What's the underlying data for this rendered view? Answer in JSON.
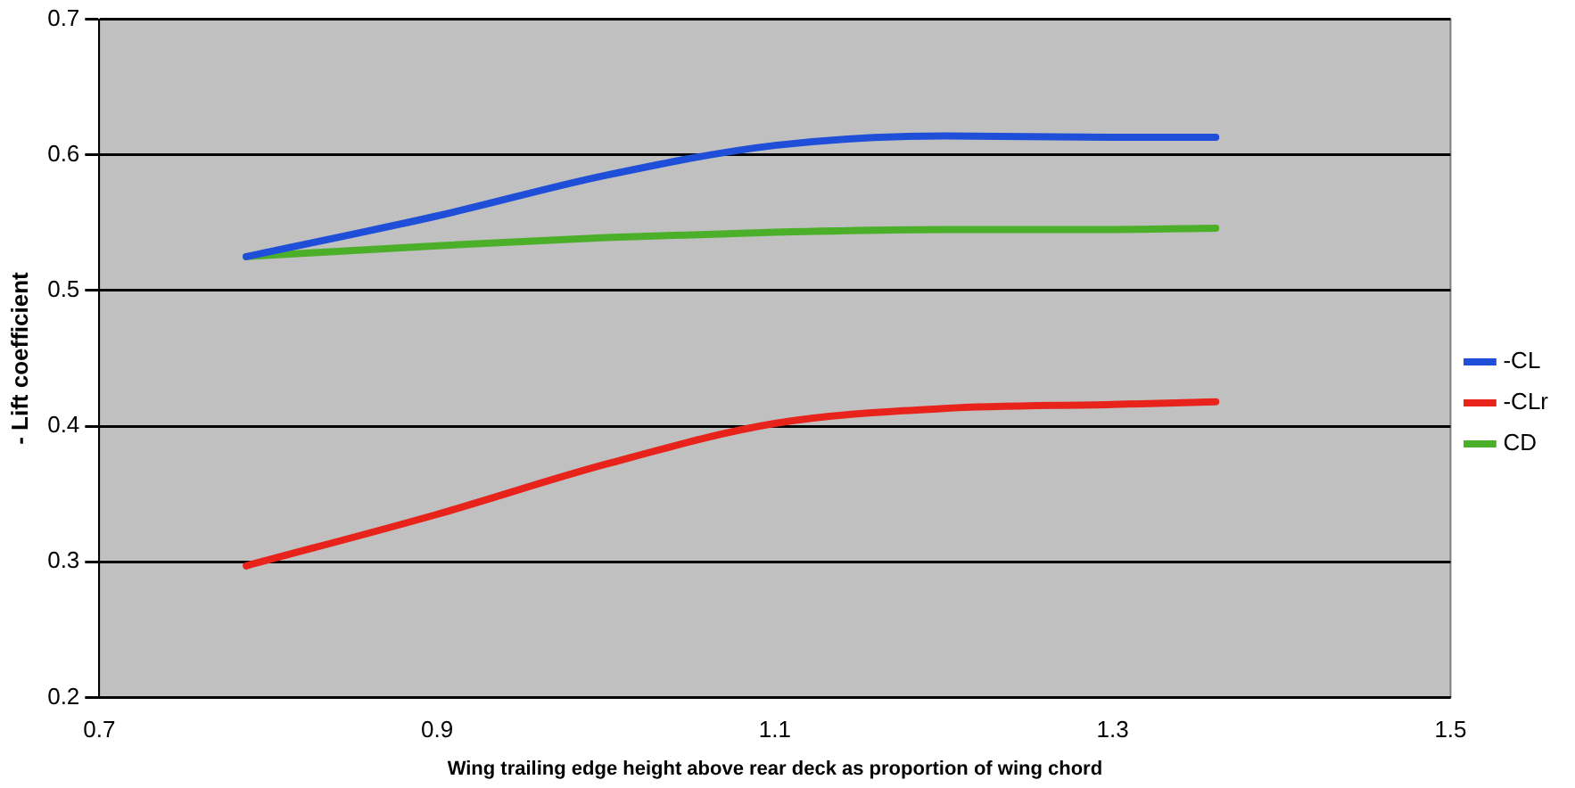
{
  "chart_data": {
    "type": "line",
    "xlabel": "Wing trailing edge height above rear deck as proportion of wing chord",
    "ylabel": "- Lift coefficient",
    "xlim": [
      0.7,
      1.5
    ],
    "xticks": [
      0.7,
      0.9,
      1.1,
      1.3,
      1.5
    ],
    "ylim": [
      0.2,
      0.7
    ],
    "yticks": [
      0.2,
      0.3,
      0.4,
      0.5,
      0.6,
      0.7
    ],
    "grid": "y",
    "legend": "right",
    "marker": "none",
    "line_style": "solid",
    "series": [
      {
        "name": "-CL",
        "color": "#1f4fd8",
        "x": [
          0.787,
          0.9,
          1.0,
          1.1,
          1.2,
          1.3,
          1.361
        ],
        "values": [
          0.525,
          0.555,
          0.585,
          0.607,
          0.614,
          0.613,
          0.613
        ]
      },
      {
        "name": "-CLr",
        "color": "#e8231c",
        "x": [
          0.787,
          0.9,
          1.0,
          1.1,
          1.2,
          1.3,
          1.361
        ],
        "values": [
          0.297,
          0.335,
          0.372,
          0.402,
          0.413,
          0.416,
          0.418
        ]
      },
      {
        "name": "CD",
        "color": "#4caf2a",
        "x": [
          0.787,
          0.9,
          1.0,
          1.1,
          1.2,
          1.3,
          1.361
        ],
        "values": [
          0.525,
          0.533,
          0.539,
          0.543,
          0.545,
          0.545,
          0.546
        ]
      }
    ]
  }
}
